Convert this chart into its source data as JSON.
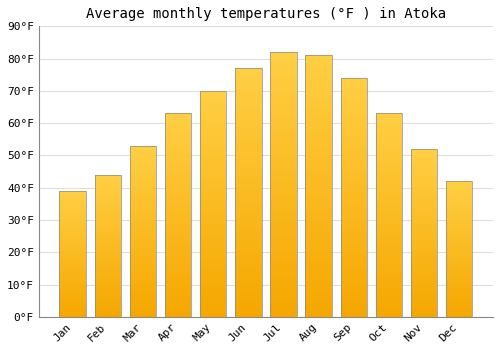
{
  "title": "Average monthly temperatures (°F ) in Atoka",
  "months": [
    "Jan",
    "Feb",
    "Mar",
    "Apr",
    "May",
    "Jun",
    "Jul",
    "Aug",
    "Sep",
    "Oct",
    "Nov",
    "Dec"
  ],
  "values": [
    39,
    44,
    53,
    63,
    70,
    77,
    82,
    81,
    74,
    63,
    52,
    42
  ],
  "bar_color_light": "#FFCF44",
  "bar_color_dark": "#F5A700",
  "bar_edge_color": "#888888",
  "background_color": "#ffffff",
  "plot_bg_color": "#ffffff",
  "grid_color": "#dddddd",
  "ylim": [
    0,
    90
  ],
  "yticks": [
    0,
    10,
    20,
    30,
    40,
    50,
    60,
    70,
    80,
    90
  ],
  "ylabel_suffix": "°F",
  "title_fontsize": 10,
  "tick_fontsize": 8,
  "font_family": "monospace",
  "bar_width": 0.75
}
